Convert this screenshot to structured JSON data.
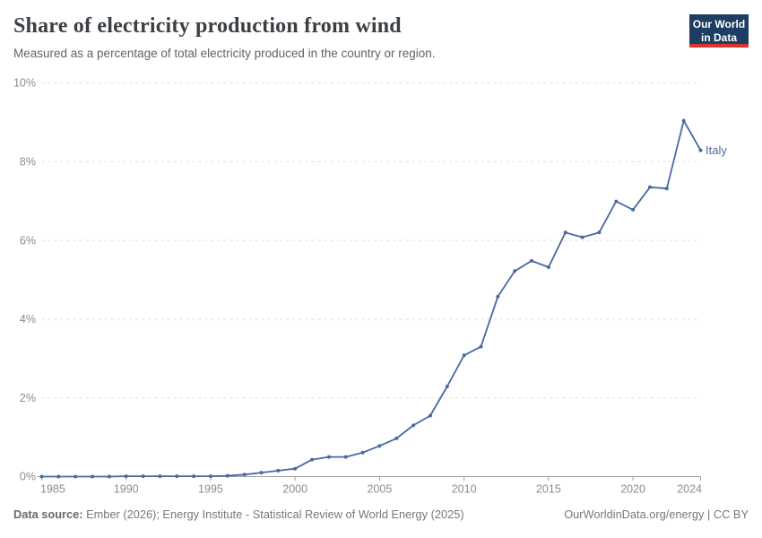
{
  "header": {
    "title": "Share of electricity production from wind",
    "subtitle": "Measured as a percentage of total electricity produced in the country or region.",
    "logo": {
      "line1": "Our World",
      "line2": "in Data",
      "bg_color": "#1d3d63",
      "accent_color": "#d8352c"
    }
  },
  "chart_data": {
    "type": "line",
    "title": "Share of electricity production from wind",
    "xlabel": "",
    "ylabel": "",
    "xlim": [
      1985,
      2024
    ],
    "ylim": [
      0,
      10
    ],
    "grid": "horizontal-dashed",
    "legend_position": "end-of-line-label",
    "x_ticks": [
      1985,
      1990,
      1995,
      2000,
      2005,
      2010,
      2015,
      2020,
      2024
    ],
    "y_ticks": [
      0,
      2,
      4,
      6,
      8,
      10
    ],
    "y_tick_suffix": "%",
    "x": [
      1985,
      1986,
      1987,
      1988,
      1989,
      1990,
      1991,
      1992,
      1993,
      1994,
      1995,
      1996,
      1997,
      1998,
      1999,
      2000,
      2001,
      2002,
      2003,
      2004,
      2005,
      2006,
      2007,
      2008,
      2009,
      2010,
      2011,
      2012,
      2013,
      2014,
      2015,
      2016,
      2017,
      2018,
      2019,
      2020,
      2021,
      2022,
      2023,
      2024
    ],
    "series": [
      {
        "name": "Italy",
        "color": "#4a69a3",
        "values": [
          0,
          0,
          0,
          0,
          0,
          0.01,
          0.01,
          0.01,
          0.01,
          0.01,
          0.01,
          0.02,
          0.05,
          0.1,
          0.15,
          0.2,
          0.43,
          0.5,
          0.5,
          0.61,
          0.78,
          0.97,
          1.3,
          1.55,
          2.29,
          3.08,
          3.3,
          4.57,
          5.22,
          5.48,
          5.32,
          6.2,
          6.08,
          6.2,
          6.99,
          6.78,
          7.35,
          7.32,
          9.04,
          8.29
        ]
      }
    ],
    "colors": {
      "gridline": "#dedede",
      "axis_line": "#a1a1a1",
      "tick_label": "#8c8c8c"
    }
  },
  "footer": {
    "source_label": "Data source:",
    "source_text": " Ember (2026); Energy Institute - Statistical Review of World Energy (2025)",
    "right_text": "OurWorldinData.org/energy | CC BY"
  }
}
